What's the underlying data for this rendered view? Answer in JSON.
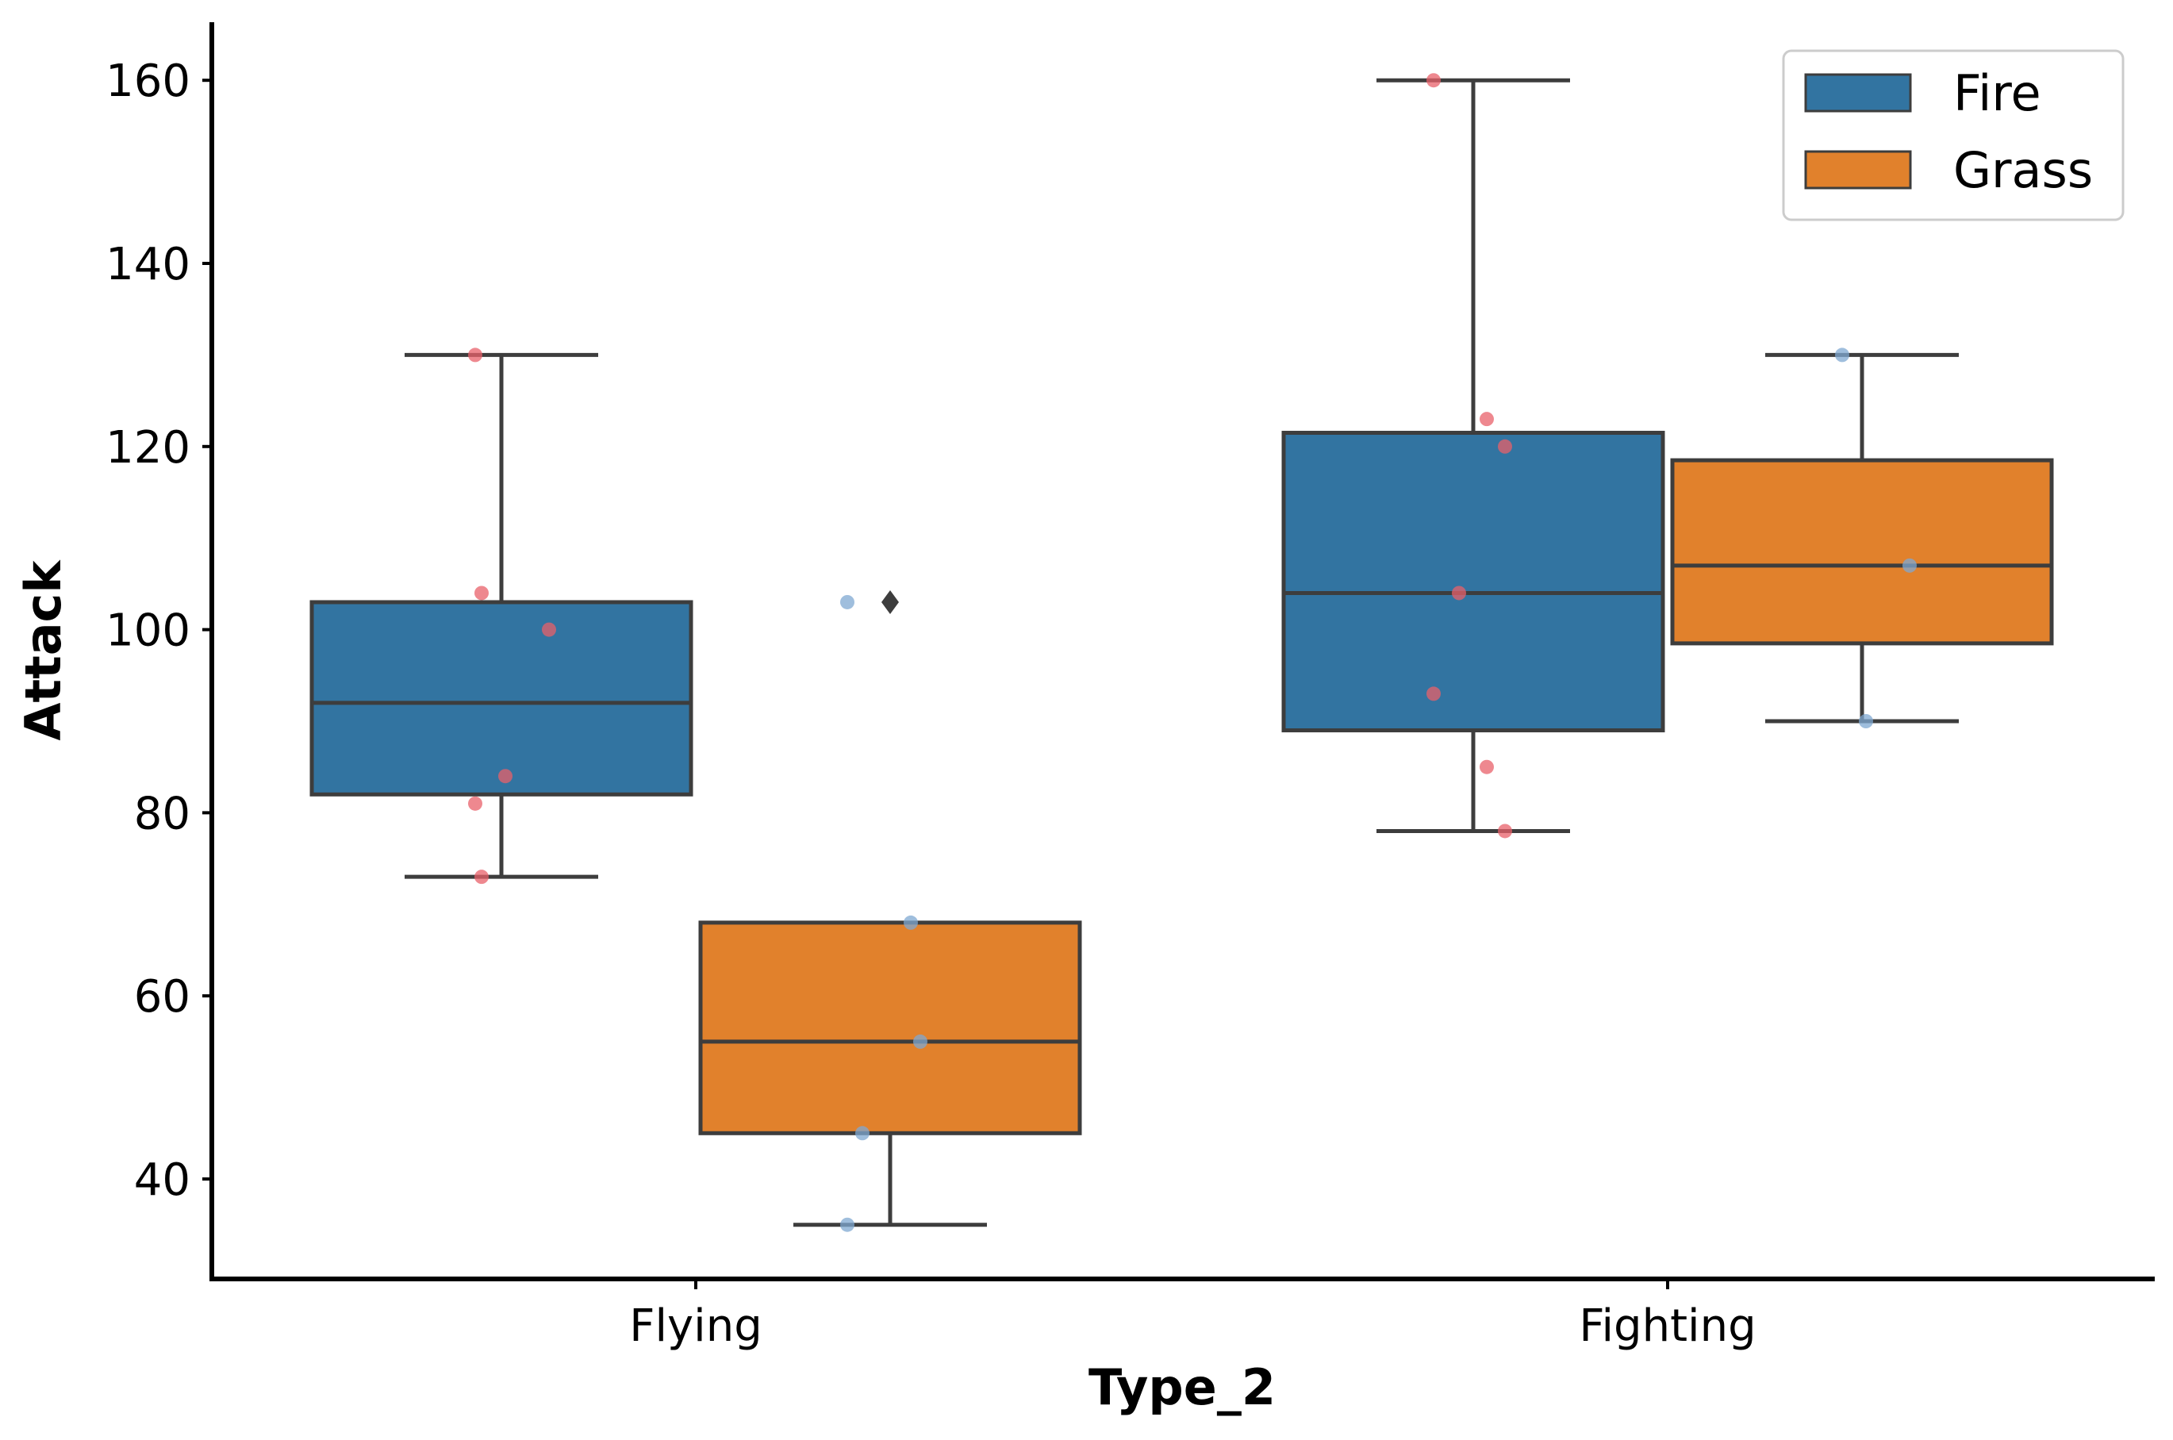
{
  "chart_data": {
    "type": "box",
    "xlabel": "Type_2",
    "ylabel": "Attack",
    "categories": [
      "Flying",
      "Fighting"
    ],
    "hue_order": [
      "Fire",
      "Grass"
    ],
    "ylim": [
      29,
      166
    ],
    "yticks": [
      40,
      60,
      80,
      100,
      120,
      140,
      160
    ],
    "grid": false,
    "legend": {
      "position": "top-right",
      "entries": [
        "Fire",
        "Grass"
      ]
    },
    "colors": {
      "Fire": "#3274a1",
      "Grass": "#e1812c",
      "Fire_points": "#e8606a",
      "Grass_points": "#7fa8d2",
      "edge": "#3d3d3d"
    },
    "boxes": [
      {
        "category": "Flying",
        "hue": "Fire",
        "whisker_low": 73,
        "q1": 82,
        "median": 92,
        "q3": 103,
        "whisker_high": 130,
        "outliers": []
      },
      {
        "category": "Flying",
        "hue": "Grass",
        "whisker_low": 35,
        "q1": 45,
        "median": 55,
        "q3": 68,
        "whisker_high": 68,
        "outliers": [
          103
        ]
      },
      {
        "category": "Fighting",
        "hue": "Fire",
        "whisker_low": 78,
        "q1": 89,
        "median": 104,
        "q3": 121.5,
        "whisker_high": 160,
        "outliers": []
      },
      {
        "category": "Fighting",
        "hue": "Grass",
        "whisker_low": 90,
        "q1": 98.5,
        "median": 107,
        "q3": 118.5,
        "whisker_high": 130,
        "outliers": []
      }
    ],
    "points": [
      {
        "category": "Flying",
        "hue": "Fire",
        "values": [
          130,
          104,
          100,
          84,
          81,
          73
        ]
      },
      {
        "category": "Flying",
        "hue": "Grass",
        "values": [
          103,
          68,
          55,
          45,
          35
        ]
      },
      {
        "category": "Fighting",
        "hue": "Fire",
        "values": [
          160,
          123,
          120,
          104,
          93,
          85,
          78
        ]
      },
      {
        "category": "Fighting",
        "hue": "Grass",
        "values": [
          130,
          107,
          90
        ]
      }
    ]
  }
}
